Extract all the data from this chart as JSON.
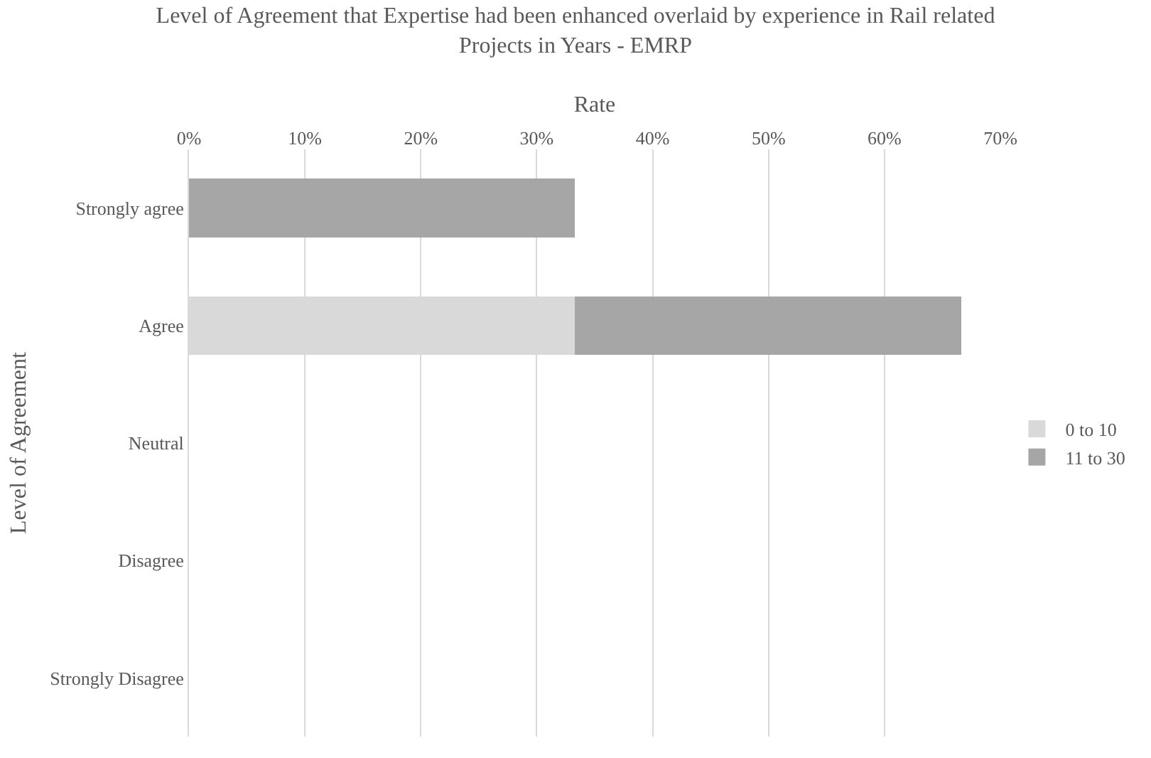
{
  "chart_data": {
    "type": "bar",
    "orientation": "horizontal",
    "stacked": true,
    "title": "Level of Agreement that Expertise had been enhanced overlaid by experience in Rail related Projects in Years - EMRP",
    "xlabel": "Rate",
    "ylabel": "Level of Agreement",
    "categories": [
      "Strongly agree",
      "Agree",
      "Neutral",
      "Disagree",
      "Strongly Disagree"
    ],
    "series": [
      {
        "name": "0 to 10",
        "color": "#d9d9d9",
        "values": [
          0,
          33.3,
          0,
          0,
          0
        ]
      },
      {
        "name": "11 to 30",
        "color": "#a6a6a6",
        "values": [
          33.3,
          33.3,
          0,
          0,
          0
        ]
      }
    ],
    "xlim": [
      0,
      70
    ],
    "xticks": [
      {
        "value": 0,
        "label": "0%"
      },
      {
        "value": 10,
        "label": "10%"
      },
      {
        "value": 20,
        "label": "20%"
      },
      {
        "value": 30,
        "label": "30%"
      },
      {
        "value": 40,
        "label": "40%"
      },
      {
        "value": 50,
        "label": "50%"
      },
      {
        "value": 60,
        "label": "60%"
      },
      {
        "value": 70,
        "label": "70%"
      }
    ],
    "grid": "x",
    "legend": "right"
  }
}
